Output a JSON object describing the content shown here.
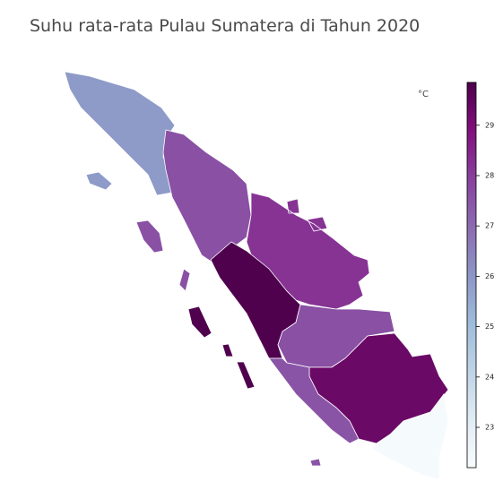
{
  "map": {
    "title": "Suhu rata-rata Pulau Sumatera di Tahun 2020",
    "colorbar": {
      "label": "°C",
      "lim": [
        22.2,
        29.85
      ],
      "ticks": [
        23,
        24,
        25,
        26,
        27,
        28,
        29
      ],
      "colormap": [
        "#f7fcfd",
        "#e0ecf4",
        "#bfd3e6",
        "#9ebcda",
        "#8c96c6",
        "#8c6bb1",
        "#88419d",
        "#810f7c",
        "#4d004b"
      ]
    },
    "regions": [
      {
        "value": 25.9
      },
      {
        "value": 27.6
      },
      {
        "value": 28.2
      },
      {
        "value": 29.8
      },
      {
        "value": 27.6
      },
      {
        "value": 29.3
      },
      {
        "value": 27.5
      },
      {
        "value": 22.3
      }
    ]
  }
}
